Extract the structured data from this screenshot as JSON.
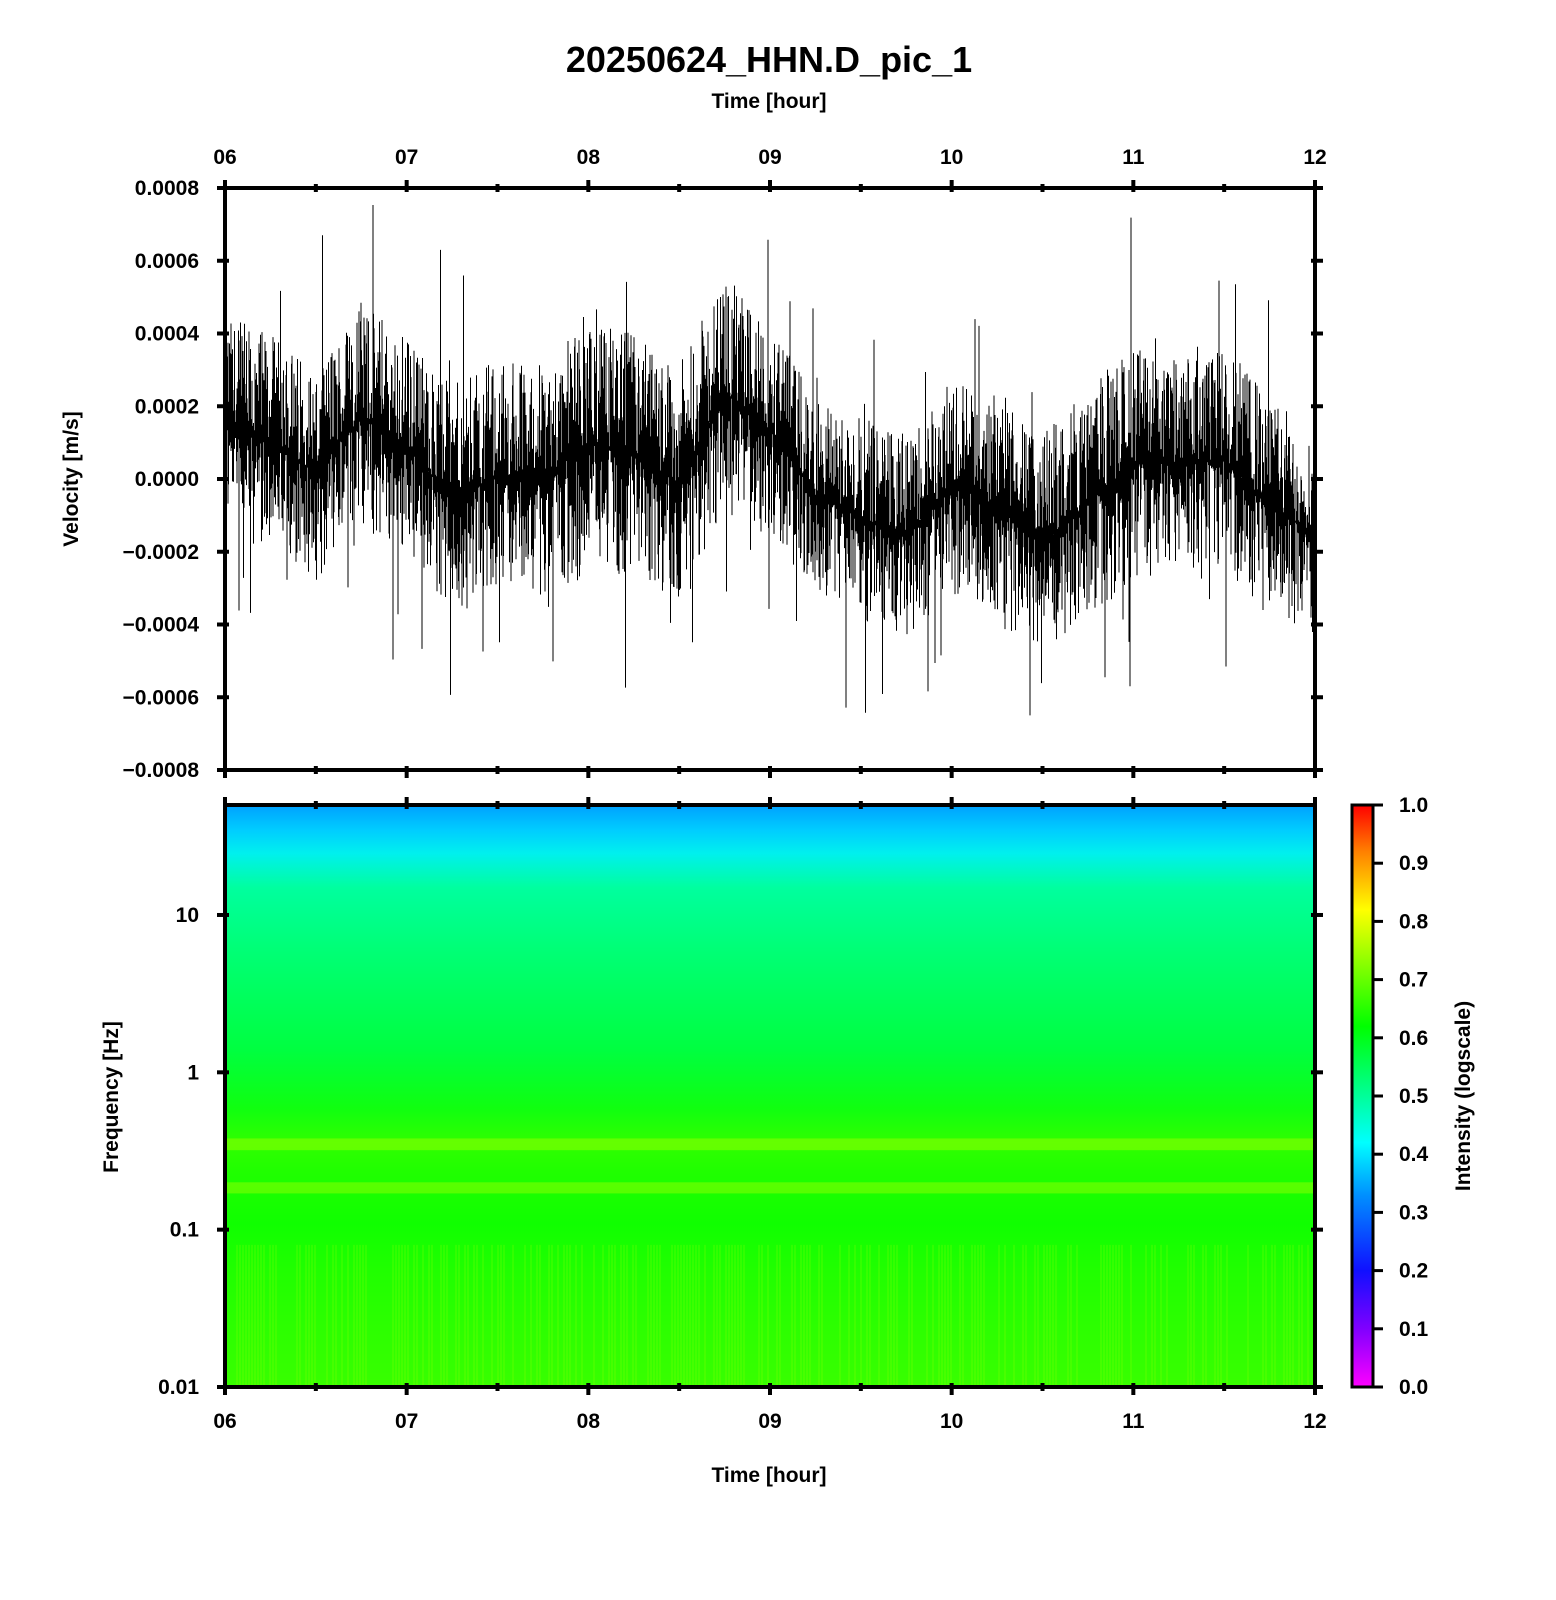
{
  "figure": {
    "title": "20250624_HHN.D_pic_1",
    "top_xlabel": "Time [hour]",
    "bottom_xlabel": "Time [hour]"
  },
  "chart_data": [
    {
      "type": "line",
      "panel": "waveform",
      "xlabel": "Time [hour]",
      "ylabel": "Velocity [m/s]",
      "x_ticks": [
        "06",
        "07",
        "08",
        "09",
        "10",
        "11",
        "12"
      ],
      "x_range_hours": [
        6,
        12
      ],
      "y_ticks": [
        "0.0008",
        "0.0006",
        "0.0004",
        "0.0002",
        "0.0000",
        "−0.0002",
        "−0.0004",
        "−0.0006",
        "−0.0008"
      ],
      "ylim": [
        -0.0008,
        0.0008
      ],
      "color": "#000000",
      "series": [
        {
          "x": [
            6.0,
            6.25,
            6.5,
            6.75,
            7.0,
            7.25,
            7.5,
            7.75,
            8.0,
            8.25,
            8.5,
            8.75,
            9.0,
            9.25,
            9.5,
            9.75,
            10.0,
            10.25,
            10.5,
            10.75,
            11.0,
            11.25,
            11.5,
            11.75,
            12.0
          ],
          "y_upper": [
            0.00045,
            0.0004,
            0.00032,
            0.0005,
            0.0004,
            0.00026,
            0.00033,
            0.00032,
            0.00043,
            0.00041,
            0.00031,
            0.00057,
            0.00043,
            0.00022,
            0.00018,
            0.00012,
            0.00029,
            0.00025,
            0.00012,
            0.00025,
            0.00037,
            0.00033,
            0.00037,
            0.00023,
            0.00013
          ],
          "y_lower": [
            -0.00015,
            -0.00021,
            -0.00028,
            -0.00016,
            -0.00022,
            -0.00037,
            -0.00031,
            -0.00032,
            -0.00023,
            -0.00028,
            -0.00033,
            -9e-05,
            -0.00016,
            -0.00031,
            -0.00039,
            -0.00043,
            -0.00032,
            -0.0004,
            -0.00048,
            -0.00038,
            -0.00029,
            -0.00024,
            -0.00027,
            -0.00037,
            -0.00043
          ],
          "spike_max": 0.00079,
          "spike_min": -0.00065
        }
      ]
    },
    {
      "type": "heatmap",
      "panel": "spectrogram",
      "xlabel": "Time [hour]",
      "ylabel": "Frequency [Hz]",
      "x_ticks": [
        "06",
        "07",
        "08",
        "09",
        "10",
        "11",
        "12"
      ],
      "x_range_hours": [
        6,
        12
      ],
      "y_scale": "log",
      "y_ticks": [
        "10",
        "1",
        "0.1",
        "0.01"
      ],
      "ylim_hz": [
        0.01,
        50
      ],
      "colorbar": {
        "label": "Intensity (logscale)",
        "ticks": [
          "1.0",
          "0.9",
          "0.8",
          "0.7",
          "0.6",
          "0.5",
          "0.4",
          "0.3",
          "0.2",
          "0.1",
          "0.0"
        ],
        "range": [
          0,
          1
        ]
      },
      "intensity_profile": {
        "frequency_hz": [
          50,
          40,
          30,
          20,
          10,
          3,
          1,
          0.6,
          0.35,
          0.2,
          0.1,
          0.03,
          0.01
        ],
        "intensity": [
          0.38,
          0.42,
          0.47,
          0.52,
          0.56,
          0.58,
          0.6,
          0.63,
          0.64,
          0.63,
          0.61,
          0.62,
          0.63
        ]
      }
    }
  ]
}
